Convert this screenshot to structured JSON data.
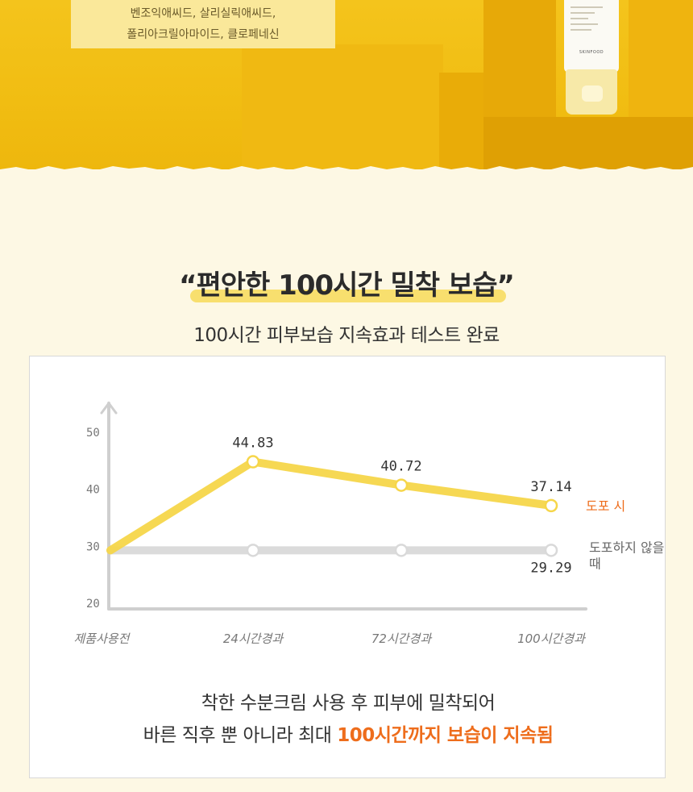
{
  "banner": {
    "ingredient_line1": "벤조익애씨드, 살리실릭애씨드,",
    "ingredient_line2": "폴리아크릴아마이드, 클로페네신",
    "tube_brand": "SKINFOOD"
  },
  "headline": "“편안한 100시간 밀착 보습”",
  "subhead": "100시간 피부보습 지속효과 테스트 완료",
  "caption": {
    "line1": "착한 수분크림 사용 후 피부에 밀착되어",
    "line2_prefix": "바른 직후 뿐 아니라 최대 ",
    "line2_accent": "100시간까지 보습이 지속됨"
  },
  "colors": {
    "banner_yellow": "#f2c015",
    "series_applied": "#f6d64a",
    "series_not_applied": "#d9d9d9",
    "accent_orange": "#ee6d1c",
    "background": "#fdf8e4"
  },
  "chart_data": {
    "type": "line",
    "categories": [
      "제품사용전",
      "24시간경과",
      "72시간경과",
      "100시간경과"
    ],
    "yticks": [
      20,
      30,
      40,
      50
    ],
    "ylim": [
      20,
      50
    ],
    "grid": false,
    "legend": "right, at line ends",
    "series": [
      {
        "name": "도포 시",
        "values": [
          29.29,
          44.83,
          40.72,
          37.14
        ],
        "labels": [
          "",
          "44.83",
          "40.72",
          "37.14"
        ]
      },
      {
        "name": "도포하지 않을 때",
        "values": [
          29.29,
          29.29,
          29.29,
          29.29
        ],
        "labels": [
          "",
          "",
          "",
          "29.29"
        ]
      }
    ]
  }
}
